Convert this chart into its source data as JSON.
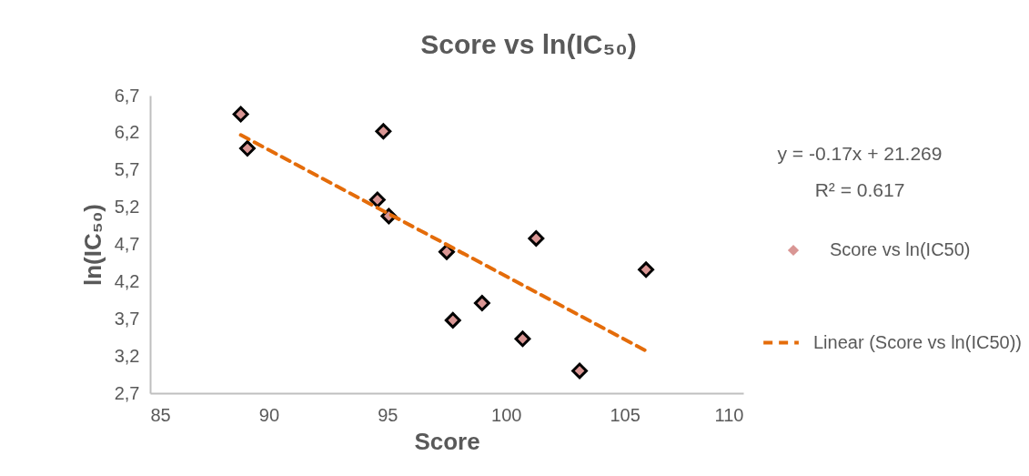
{
  "chart_data": {
    "type": "scatter",
    "title": "Score vs ln(IC₅₀)",
    "xlabel": "Score",
    "ylabel": "ln(IC₅₀)",
    "xlim": [
      85,
      110
    ],
    "xticks": [
      85,
      90,
      95,
      100,
      105,
      110
    ],
    "ylim": [
      2.7,
      6.7
    ],
    "yticks": [
      {
        "value": 2.7,
        "label": "2,7"
      },
      {
        "value": 3.2,
        "label": "3,2"
      },
      {
        "value": 3.7,
        "label": "3,7"
      },
      {
        "value": 4.2,
        "label": "4,2"
      },
      {
        "value": 4.7,
        "label": "4,7"
      },
      {
        "value": 5.2,
        "label": "5,2"
      },
      {
        "value": 5.7,
        "label": "5,7"
      },
      {
        "value": 6.2,
        "label": "6,2"
      },
      {
        "value": 6.7,
        "label": "6,7"
      }
    ],
    "grid": false,
    "legend": "right",
    "annotations": [
      "y = -0.17x + 21.269",
      "R² = 0.617"
    ],
    "series": [
      {
        "name": "Score vs ln(IC50)",
        "marker": "diamond",
        "color": "#d99694",
        "x": [
          88.82,
          89.1,
          94.83,
          94.58,
          95.06,
          97.5,
          101.27,
          105.9,
          98.99,
          97.76,
          100.7,
          103.1
        ],
        "values": [
          6.45,
          5.99,
          6.22,
          5.3,
          5.08,
          4.6,
          4.78,
          4.36,
          3.91,
          3.68,
          3.43,
          3.0
        ]
      },
      {
        "name": "Linear (Score vs ln(IC50))",
        "type": "line",
        "color": "#e46c0a",
        "line_style": "dashed",
        "x": [
          88.82,
          105.9
        ],
        "values": [
          6.17,
          3.27
        ]
      }
    ]
  }
}
